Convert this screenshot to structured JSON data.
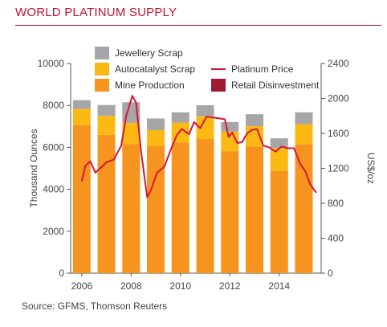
{
  "header": {
    "title": "WORLD PLATINUM SUPPLY"
  },
  "footer": {
    "source": "Source: GFMS, Thomson Reuters"
  },
  "chart_data": {
    "type": "bar",
    "stacked": true,
    "categories": [
      "2006",
      "2007",
      "2008",
      "2009",
      "2010",
      "2011",
      "2012",
      "2013",
      "2014",
      "2015"
    ],
    "series": [
      {
        "name": "Mine Production",
        "color": "#f7941d",
        "values": [
          7050,
          6600,
          6150,
          6070,
          6230,
          6400,
          5820,
          6040,
          4880,
          6160
        ]
      },
      {
        "name": "Autocatalyst Scrap",
        "color": "#fdb913",
        "values": [
          780,
          900,
          1020,
          750,
          950,
          1080,
          930,
          970,
          1090,
          940
        ]
      },
      {
        "name": "Jewellery Scrap",
        "color": "#a6a6a6",
        "values": [
          420,
          520,
          980,
          560,
          490,
          530,
          460,
          570,
          460,
          570
        ]
      },
      {
        "name": "Retail Disinvestment",
        "color": "#9e1b32",
        "values": [
          0,
          0,
          0,
          0,
          0,
          0,
          0,
          0,
          0,
          0
        ]
      }
    ],
    "line_series": {
      "name": "Platinum Price",
      "color": "#d6153a",
      "axis": "right",
      "x": [
        2006.0,
        2006.15,
        2006.35,
        2006.55,
        2006.75,
        2007.0,
        2007.3,
        2007.6,
        2007.8,
        2008.05,
        2008.2,
        2008.4,
        2008.65,
        2008.8,
        2009.05,
        2009.35,
        2009.6,
        2009.85,
        2010.05,
        2010.35,
        2010.55,
        2010.8,
        2011.05,
        2011.35,
        2011.6,
        2011.8,
        2011.95,
        2012.1,
        2012.3,
        2012.5,
        2012.7,
        2012.9,
        2013.1,
        2013.35,
        2013.6,
        2013.85,
        2014.1,
        2014.35,
        2014.6,
        2014.85,
        2015.05,
        2015.25,
        2015.5
      ],
      "y": [
        1050,
        1230,
        1280,
        1150,
        1200,
        1270,
        1300,
        1460,
        1800,
        2030,
        1950,
        1400,
        870,
        950,
        1150,
        1220,
        1410,
        1580,
        1650,
        1590,
        1730,
        1660,
        1790,
        1780,
        1770,
        1760,
        1560,
        1610,
        1490,
        1500,
        1600,
        1640,
        1650,
        1460,
        1440,
        1390,
        1450,
        1430,
        1430,
        1250,
        1170,
        1020,
        920
      ]
    },
    "xlabel": "",
    "ylabel": "Thousand Ounces",
    "y2label": "US$/oz",
    "ylim": [
      0,
      10000
    ],
    "y2lim": [
      0,
      2400
    ],
    "yticks": [
      0,
      2000,
      4000,
      6000,
      8000,
      10000
    ],
    "y2ticks": [
      0,
      400,
      800,
      1200,
      1600,
      2000,
      2400
    ],
    "xtick_labels": [
      "2006",
      "2008",
      "2010",
      "2012",
      "2014"
    ],
    "xtick_values": [
      2006,
      2008,
      2010,
      2012,
      2014
    ],
    "legend": {
      "placement": "top-left",
      "items": [
        {
          "label": "Jewellery Scrap",
          "kind": "box",
          "color": "#a6a6a6"
        },
        {
          "label": "Autocatalyst Scrap",
          "kind": "box",
          "color": "#fdb913"
        },
        {
          "label": "Mine Production",
          "kind": "box",
          "color": "#f7941d"
        },
        {
          "label": "Platinum Price",
          "kind": "line",
          "color": "#d6153a"
        },
        {
          "label": "Retail Disinvestment",
          "kind": "box",
          "color": "#9e1b32"
        }
      ]
    }
  }
}
